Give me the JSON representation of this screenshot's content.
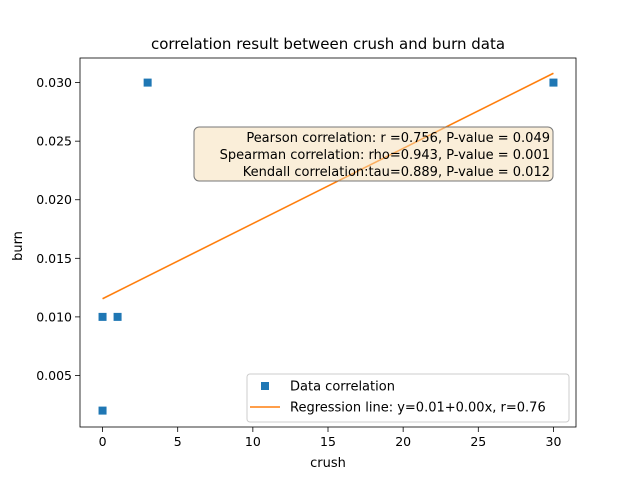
{
  "chart_data": {
    "type": "scatter",
    "title": "correlation result between crush and burn data",
    "xlabel": "crush",
    "ylabel": "burn",
    "xlim": [
      -1.5,
      31.5
    ],
    "ylim": [
      0.0006,
      0.0321
    ],
    "xticks": [
      0,
      5,
      10,
      15,
      20,
      25,
      30
    ],
    "xtick_labels": [
      "0",
      "5",
      "10",
      "15",
      "20",
      "25",
      "30"
    ],
    "yticks": [
      0.005,
      0.01,
      0.015,
      0.02,
      0.025,
      0.03
    ],
    "ytick_labels": [
      "0.005",
      "0.010",
      "0.015",
      "0.020",
      "0.025",
      "0.030"
    ],
    "grid": false,
    "legend_position": "lower-right",
    "series": [
      {
        "name": "Data correlation",
        "kind": "scatter",
        "marker": "square",
        "color": "#1f77b4",
        "x": [
          0,
          0,
          1,
          3,
          30
        ],
        "y": [
          0.002,
          0.01,
          0.01,
          0.03,
          0.03
        ]
      },
      {
        "name": "Regression line: y=0.01+0.00x, r=0.76",
        "kind": "line",
        "color": "#ff7f0e",
        "x": [
          0,
          30
        ],
        "y": [
          0.01155,
          0.0308
        ]
      }
    ],
    "annotation": {
      "lines": [
        "Pearson correlation: r =0.756, P-value = 0.049",
        "Spearman correlation: rho=0.943, P-value = 0.001",
        "Kendall correlation:tau=0.889, P-value = 0.012"
      ],
      "box_fill": "#f5deb3",
      "position": "upper-right"
    }
  }
}
